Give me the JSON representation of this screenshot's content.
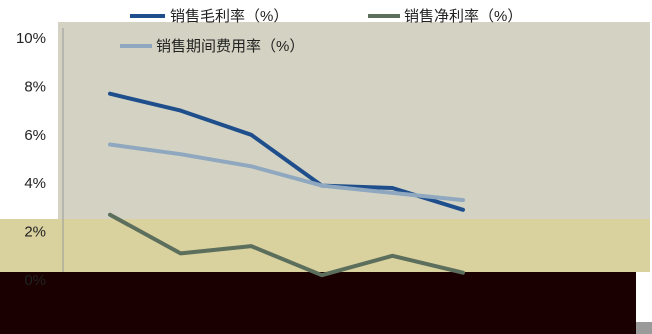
{
  "chart_data": {
    "type": "line",
    "title": "",
    "xlabel": "",
    "ylabel": "",
    "ylim": [
      0,
      10
    ],
    "y_ticks": [
      "0%",
      "2%",
      "4%",
      "6%",
      "8%",
      "10%"
    ],
    "x_categories_visible": false,
    "grid": false,
    "legend": "top",
    "series": [
      {
        "name": "销售毛利率（%）",
        "color": "#1f4e8c",
        "values": [
          7.7,
          7.0,
          6.0,
          3.9,
          3.8,
          2.9
        ]
      },
      {
        "name": "销售净利率（%）",
        "color": "#5c6e5c",
        "values": [
          2.7,
          1.1,
          1.4,
          0.2,
          1.0,
          0.3
        ]
      },
      {
        "name": "销售期间费用率（%）",
        "color": "#8fa8bf",
        "values": [
          5.6,
          5.2,
          4.7,
          3.9,
          3.6,
          3.3
        ]
      }
    ]
  },
  "colors": {
    "plot_background": "#d4d3c3",
    "lower_band": "#d9d19e",
    "dark_strip": "#1a0000"
  }
}
